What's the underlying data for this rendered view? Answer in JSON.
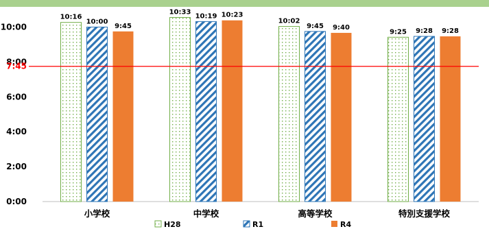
{
  "chart_data": {
    "type": "bar",
    "title": "",
    "xlabel": "",
    "ylabel": "",
    "ylim": [
      0,
      660
    ],
    "y_tick_values": [
      0,
      120,
      240,
      360,
      480,
      600
    ],
    "y_tick_labels": [
      "0:00",
      "2:00",
      "4:00",
      "6:00",
      "8:00",
      "10:00"
    ],
    "categories": [
      "小学校",
      "中学校",
      "高等学校",
      "特別支援学校"
    ],
    "series": [
      {
        "name": "H28",
        "style": "dotted-green",
        "color": "#70ad47",
        "values": [
          616,
          633,
          602,
          565
        ],
        "labels": [
          "10:16",
          "10:33",
          "10:02",
          "9:25"
        ]
      },
      {
        "name": "R1",
        "style": "hatched-blue",
        "color": "#2e75b6",
        "values": [
          600,
          619,
          585,
          568
        ],
        "labels": [
          "10:00",
          "10:19",
          "9:45",
          "9:28"
        ]
      },
      {
        "name": "R4",
        "style": "solid-orange",
        "color": "#ed7d31",
        "values": [
          585,
          623,
          580,
          568
        ],
        "labels": [
          "9:45",
          "10:23",
          "9:40",
          "9:28"
        ]
      }
    ],
    "reference_line": {
      "value": 465,
      "label": "7:45",
      "color": "#ff0000"
    },
    "legend_position": "bottom-center",
    "grid": false
  }
}
